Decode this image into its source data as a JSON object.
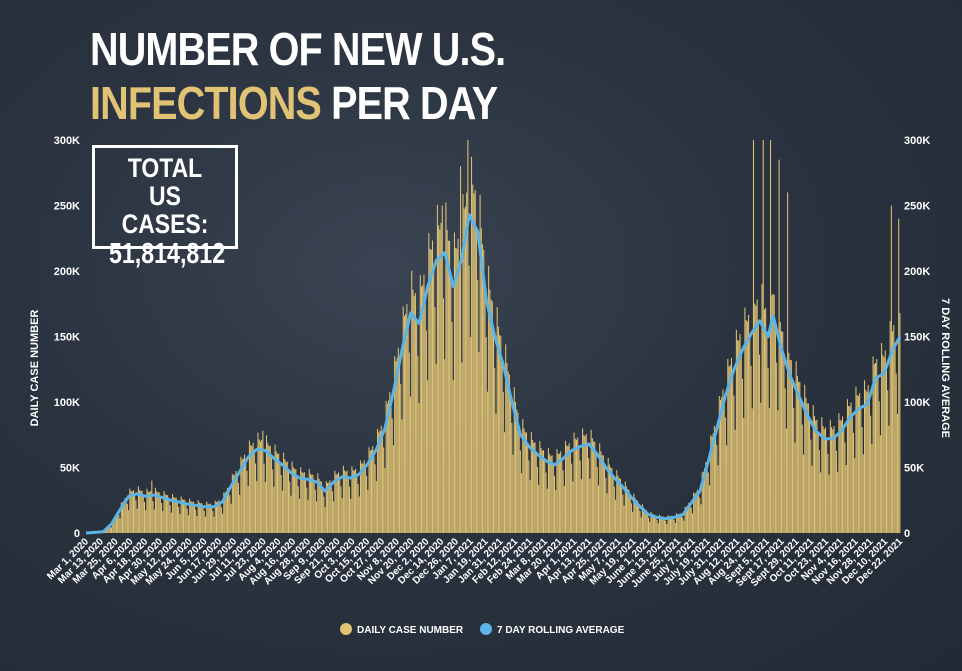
{
  "title": {
    "line1": "NUMBER OF NEW U.S.",
    "line2_highlight": "INFECTIONS",
    "line2_rest": "PER DAY"
  },
  "total_box": {
    "line1": "TOTAL",
    "line2": "US CASES:",
    "value": "51,814,812"
  },
  "colors": {
    "bar": "#e0c374",
    "line": "#5bb4e6",
    "background": "#27303d",
    "text": "#ffffff"
  },
  "chart_data": {
    "type": "bar",
    "title": "NUMBER OF NEW U.S. INFECTIONS PER DAY",
    "ylabel": "DAILY CASE NUMBER",
    "ylabel_right": "7 DAY ROLLING AVERAGE",
    "ylim": [
      0,
      300000
    ],
    "y_ticks": [
      0,
      50000,
      100000,
      150000,
      200000,
      250000,
      300000
    ],
    "y_tick_labels": [
      "0",
      "50K",
      "100K",
      "150K",
      "200K",
      "250K",
      "300K"
    ],
    "x_range": [
      "2020-03-01",
      "2021-12-28"
    ],
    "x_tick_labels": [
      "Mar 1, 2020",
      "Mar 13, 2020",
      "Mar 25, 2020",
      "Apr 6, 2020",
      "Apr 18, 2020",
      "Apr 30, 2020",
      "May 12, 2020",
      "May 24, 2020",
      "Jun 5, 2020",
      "Jun 17, 2020",
      "Jun 29, 2020",
      "Jul 11, 2020",
      "Jul 23, 2020",
      "Aug 4, 2020",
      "Aug 16, 2020",
      "Aug 28, 2020",
      "Sep 9, 2020",
      "Sep 21, 2020",
      "Oct 3, 2020",
      "Oct 15, 2020",
      "Oct 27, 2020",
      "Nov 8, 2020",
      "Nov 20, 2020",
      "Dec 2, 2020",
      "Dec 14, 2020",
      "Dec 26, 2020",
      "Jan 7, 2021",
      "Jan 19, 2021",
      "Jan 31, 2021",
      "Feb 12, 2021",
      "Feb 24, 2021",
      "Mar 8, 2021",
      "Mar 20, 2021",
      "Apr 1, 2021",
      "Apr 13, 2021",
      "Apr 25, 2021",
      "May 7, 2021",
      "May 19, 2021",
      "June 1, 2021",
      "June 13, 2021",
      "June 25, 2021",
      "July 7, 2021",
      "July 19, 2021",
      "July 31, 2021",
      "Aug 12, 2021",
      "Aug 24, 2021",
      "Sept 5, 2021",
      "Sept 17, 2021",
      "Sept 29, 2021",
      "Oct 11, 2021",
      "Oct 23, 2021",
      "Nov 4, 2021",
      "Nov 16, 2021",
      "Nov 28, 2021",
      "Dec 10, 2021",
      "Dec 22, 2021"
    ],
    "grid": false,
    "legend_position": "bottom-center",
    "series": [
      {
        "name": "DAILY CASE NUMBER",
        "type": "bar",
        "weekly_pattern": [
          0.62,
          1.2,
          1.12,
          1.1,
          1.12,
          1.0,
          0.84
        ],
        "spikes": [
          {
            "date": "2020-04-24",
            "value": 40000
          },
          {
            "date": "2020-07-24",
            "value": 78000
          },
          {
            "date": "2020-12-18",
            "value": 250000
          },
          {
            "date": "2021-01-02",
            "value": 280000
          },
          {
            "date": "2021-01-08",
            "value": 300000
          },
          {
            "date": "2021-08-30",
            "value": 300000
          },
          {
            "date": "2021-09-07",
            "value": 300000
          },
          {
            "date": "2021-09-13",
            "value": 300000
          },
          {
            "date": "2021-09-20",
            "value": 285000
          },
          {
            "date": "2021-09-27",
            "value": 260000
          },
          {
            "date": "2021-12-21",
            "value": 250000
          },
          {
            "date": "2021-12-27",
            "value": 240000
          }
        ]
      },
      {
        "name": "7 DAY ROLLING AVERAGE",
        "type": "line",
        "points": [
          [
            "2020-03-01",
            0
          ],
          [
            "2020-03-15",
            1000
          ],
          [
            "2020-03-22",
            7000
          ],
          [
            "2020-03-29",
            18000
          ],
          [
            "2020-04-05",
            28000
          ],
          [
            "2020-04-12",
            30000
          ],
          [
            "2020-04-19",
            28000
          ],
          [
            "2020-04-26",
            29000
          ],
          [
            "2020-05-10",
            25000
          ],
          [
            "2020-05-24",
            22000
          ],
          [
            "2020-06-07",
            20000
          ],
          [
            "2020-06-14",
            20000
          ],
          [
            "2020-06-21",
            24000
          ],
          [
            "2020-06-28",
            36000
          ],
          [
            "2020-07-05",
            47000
          ],
          [
            "2020-07-12",
            58000
          ],
          [
            "2020-07-19",
            64000
          ],
          [
            "2020-07-26",
            63000
          ],
          [
            "2020-08-02",
            57000
          ],
          [
            "2020-08-09",
            52000
          ],
          [
            "2020-08-16",
            46000
          ],
          [
            "2020-08-23",
            42000
          ],
          [
            "2020-08-30",
            41000
          ],
          [
            "2020-09-06",
            39000
          ],
          [
            "2020-09-13",
            32000
          ],
          [
            "2020-09-20",
            39000
          ],
          [
            "2020-09-27",
            43000
          ],
          [
            "2020-10-04",
            42000
          ],
          [
            "2020-10-11",
            45000
          ],
          [
            "2020-10-18",
            53000
          ],
          [
            "2020-10-25",
            64000
          ],
          [
            "2020-11-01",
            80000
          ],
          [
            "2020-11-08",
            108000
          ],
          [
            "2020-11-15",
            140000
          ],
          [
            "2020-11-22",
            168000
          ],
          [
            "2020-11-29",
            160000
          ],
          [
            "2020-12-06",
            188000
          ],
          [
            "2020-12-13",
            208000
          ],
          [
            "2020-12-20",
            214000
          ],
          [
            "2020-12-27",
            188000
          ],
          [
            "2021-01-03",
            210000
          ],
          [
            "2021-01-09",
            243000
          ],
          [
            "2021-01-16",
            230000
          ],
          [
            "2021-01-23",
            178000
          ],
          [
            "2021-01-30",
            150000
          ],
          [
            "2021-02-06",
            128000
          ],
          [
            "2021-02-13",
            100000
          ],
          [
            "2021-02-20",
            75000
          ],
          [
            "2021-02-27",
            66000
          ],
          [
            "2021-03-06",
            60000
          ],
          [
            "2021-03-13",
            55000
          ],
          [
            "2021-03-20",
            52000
          ],
          [
            "2021-03-27",
            57000
          ],
          [
            "2021-04-03",
            63000
          ],
          [
            "2021-04-10",
            66000
          ],
          [
            "2021-04-17",
            68000
          ],
          [
            "2021-04-24",
            60000
          ],
          [
            "2021-05-01",
            50000
          ],
          [
            "2021-05-08",
            42000
          ],
          [
            "2021-05-15",
            35000
          ],
          [
            "2021-05-22",
            27000
          ],
          [
            "2021-05-29",
            20000
          ],
          [
            "2021-06-05",
            14000
          ],
          [
            "2021-06-12",
            12000
          ],
          [
            "2021-06-19",
            11000
          ],
          [
            "2021-06-26",
            12000
          ],
          [
            "2021-07-03",
            14000
          ],
          [
            "2021-07-10",
            23000
          ],
          [
            "2021-07-17",
            32000
          ],
          [
            "2021-07-24",
            55000
          ],
          [
            "2021-07-31",
            80000
          ],
          [
            "2021-08-07",
            105000
          ],
          [
            "2021-08-14",
            125000
          ],
          [
            "2021-08-21",
            140000
          ],
          [
            "2021-08-28",
            152000
          ],
          [
            "2021-09-04",
            162000
          ],
          [
            "2021-09-11",
            150000
          ],
          [
            "2021-09-15",
            166000
          ],
          [
            "2021-09-22",
            140000
          ],
          [
            "2021-09-29",
            120000
          ],
          [
            "2021-10-06",
            105000
          ],
          [
            "2021-10-13",
            90000
          ],
          [
            "2021-10-20",
            78000
          ],
          [
            "2021-10-27",
            72000
          ],
          [
            "2021-11-03",
            72000
          ],
          [
            "2021-11-10",
            78000
          ],
          [
            "2021-11-17",
            88000
          ],
          [
            "2021-11-24",
            95000
          ],
          [
            "2021-12-01",
            98000
          ],
          [
            "2021-12-08",
            118000
          ],
          [
            "2021-12-15",
            122000
          ],
          [
            "2021-12-22",
            140000
          ],
          [
            "2021-12-28",
            150000
          ]
        ]
      }
    ]
  }
}
